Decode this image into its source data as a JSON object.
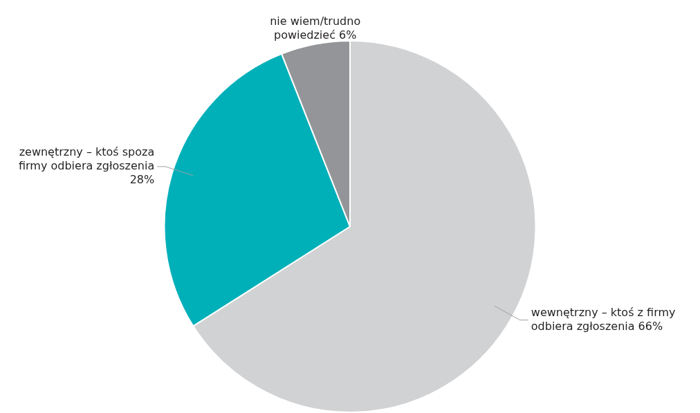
{
  "chart_data": {
    "type": "pie",
    "categories": [
      "wewnętrzny  – ktoś z firmy odbiera zgłoszenia",
      "zewnętrzny  – ktoś spoza firmy odbiera zgłoszenia",
      "nie wiem/trudno powiedzieć"
    ],
    "values": [
      66,
      28,
      6
    ],
    "value_labels": [
      "66%",
      "28%",
      "6%"
    ],
    "colors": [
      "#d1d2d4",
      "#00b0b9",
      "#939598"
    ],
    "legend": false
  }
}
